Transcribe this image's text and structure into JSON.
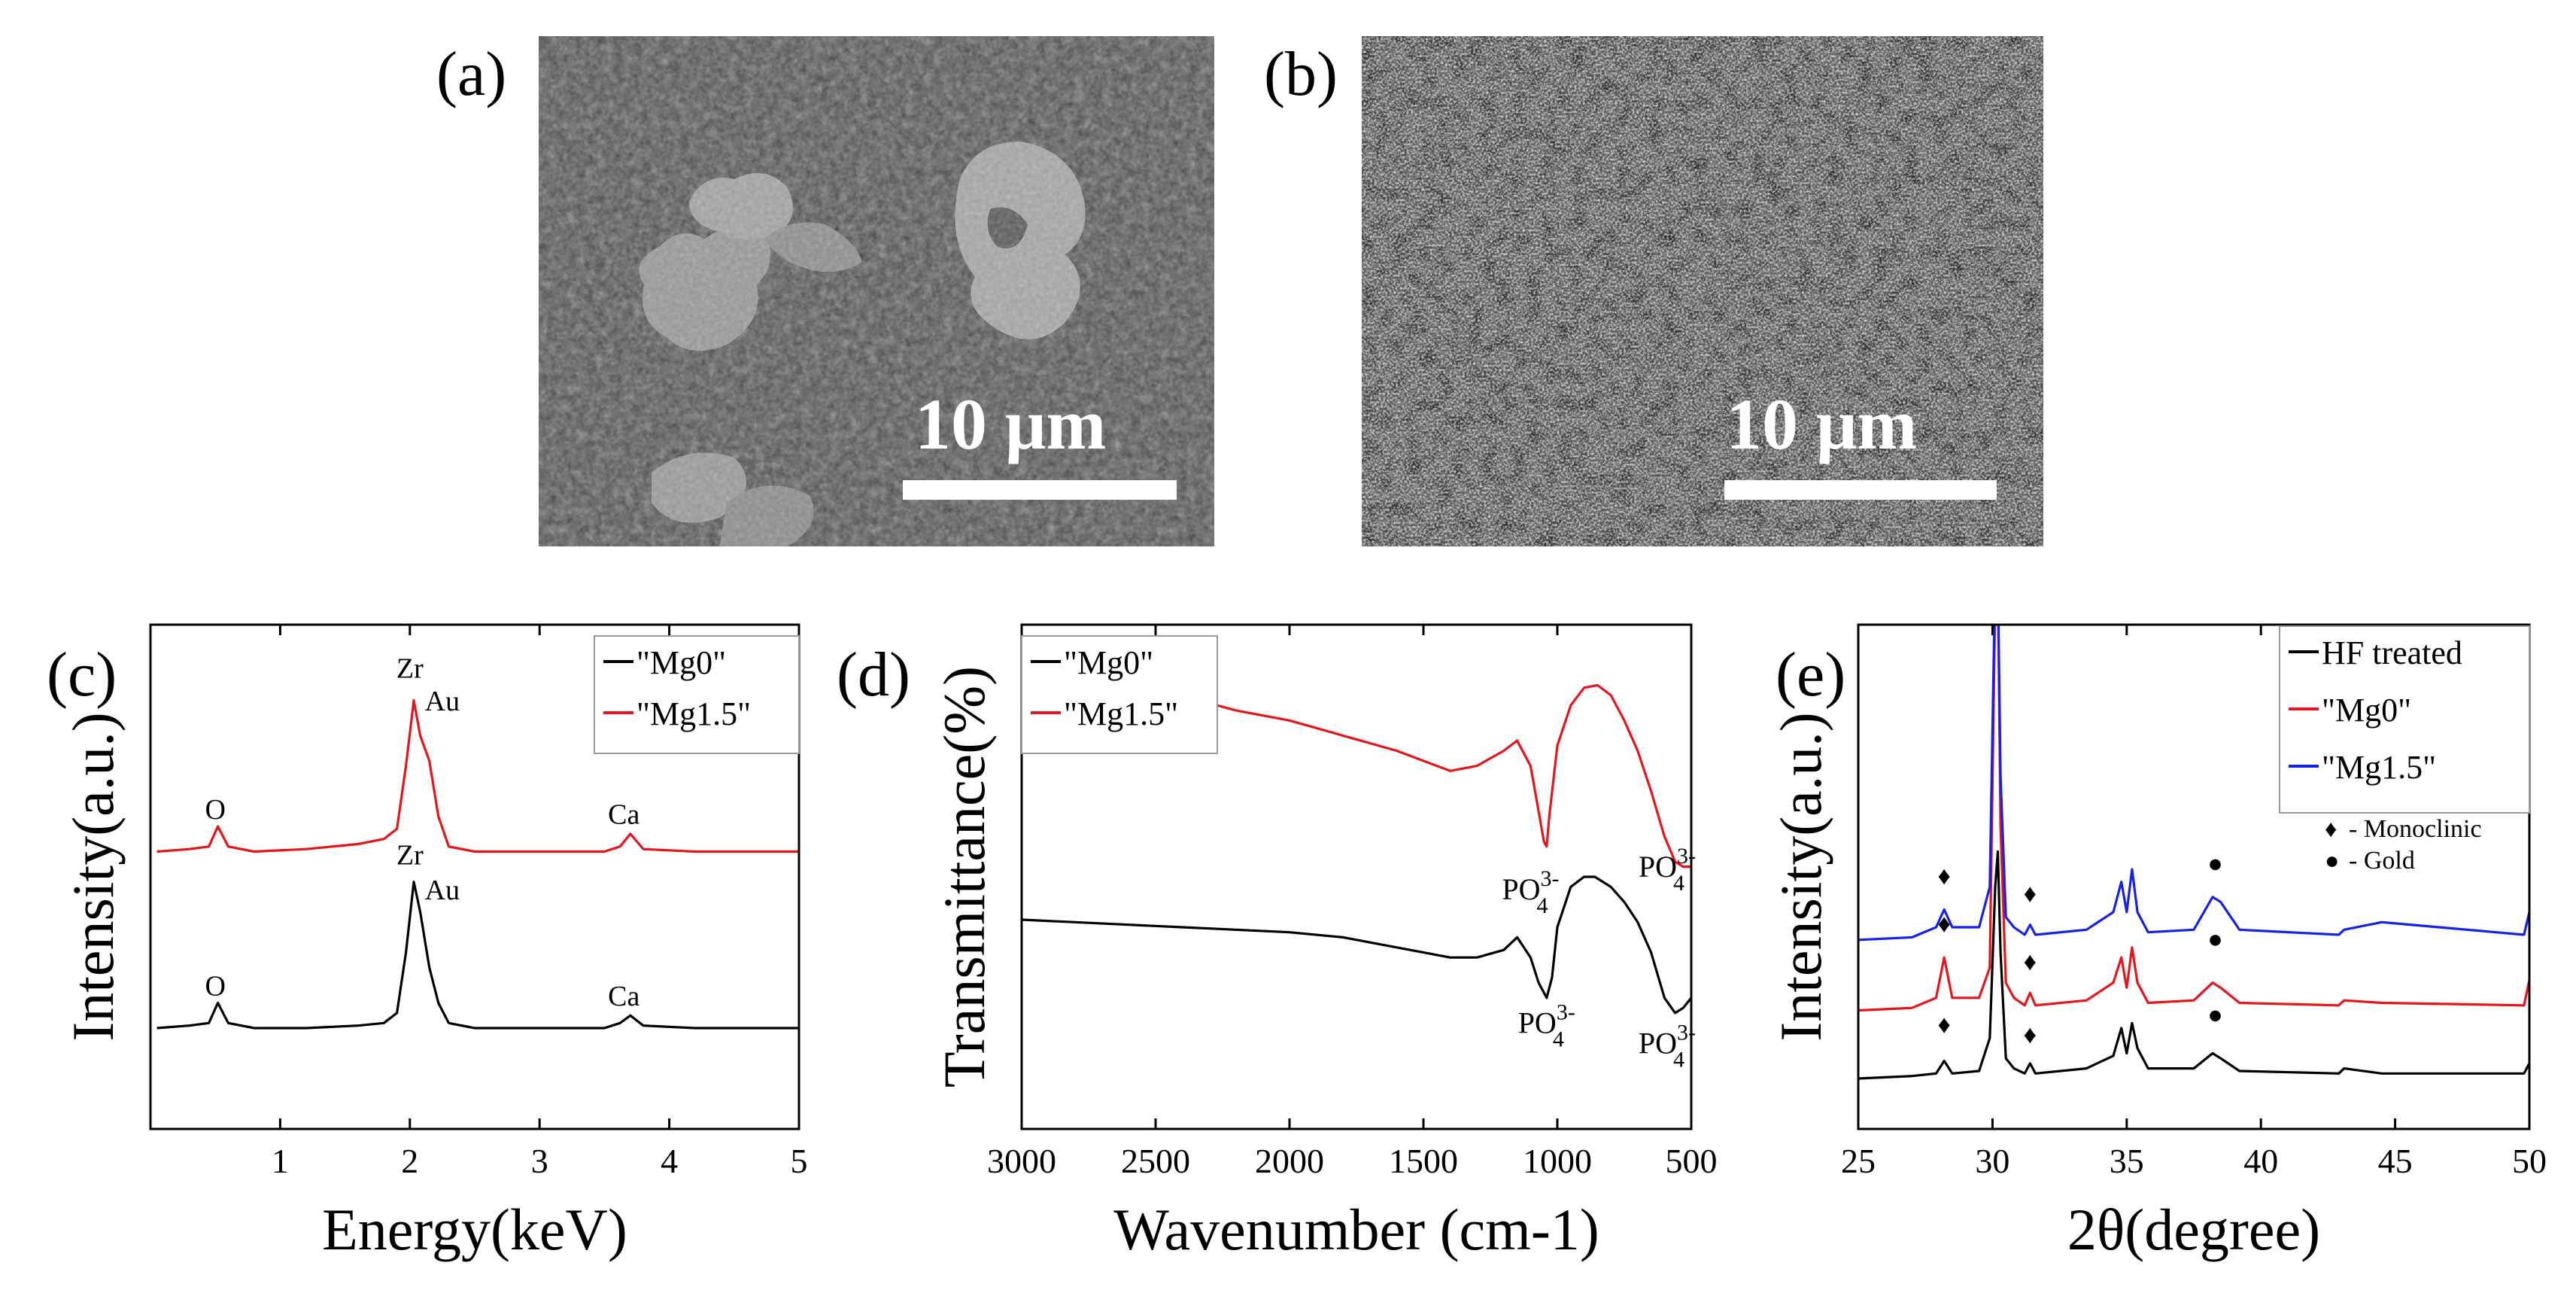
{
  "panels": {
    "a": {
      "label": "(a)",
      "scale_text": "10 μm"
    },
    "b": {
      "label": "(b)",
      "scale_text": "10 μm"
    }
  },
  "chart_data": [
    {
      "id": "c",
      "type": "line",
      "panel_label": "(c)",
      "xlabel": "Energy(keV)",
      "ylabel": "Intensity(a.u.)",
      "xlim": [
        0,
        5
      ],
      "ylim": [
        0,
        10
      ],
      "xticks": [
        1,
        2,
        3,
        4,
        5
      ],
      "yticks_shown": false,
      "legend_position": "top-right",
      "series": [
        {
          "name": "\"Mg0\"",
          "color": "#000000",
          "x": [
            0.05,
            0.3,
            0.45,
            0.52,
            0.6,
            0.8,
            1.2,
            1.6,
            1.8,
            1.9,
            1.97,
            2.03,
            2.08,
            2.15,
            2.22,
            2.3,
            2.5,
            3.0,
            3.5,
            3.62,
            3.7,
            3.8,
            4.2,
            5.0
          ],
          "y": [
            2.0,
            2.05,
            2.1,
            2.5,
            2.1,
            2.0,
            2.0,
            2.05,
            2.1,
            2.3,
            3.5,
            4.9,
            4.3,
            3.2,
            2.5,
            2.1,
            2.0,
            2.0,
            2.0,
            2.1,
            2.25,
            2.05,
            2.0,
            2.0
          ]
        },
        {
          "name": "\"Mg1.5\"",
          "color": "#e8141c",
          "x": [
            0.05,
            0.3,
            0.45,
            0.52,
            0.6,
            0.8,
            1.2,
            1.6,
            1.8,
            1.9,
            1.97,
            2.03,
            2.08,
            2.15,
            2.22,
            2.3,
            2.5,
            3.0,
            3.5,
            3.62,
            3.7,
            3.8,
            4.2,
            5.0
          ],
          "y": [
            5.5,
            5.55,
            5.6,
            6.0,
            5.6,
            5.5,
            5.55,
            5.65,
            5.75,
            5.95,
            7.2,
            8.5,
            7.8,
            7.3,
            6.2,
            5.6,
            5.5,
            5.5,
            5.5,
            5.6,
            5.85,
            5.55,
            5.5,
            5.5
          ]
        }
      ],
      "annotations": [
        {
          "text": "O",
          "x": 0.5,
          "y": 6.15
        },
        {
          "text": "Zr",
          "x": 2.0,
          "y": 8.95
        },
        {
          "text": "Au",
          "x": 2.25,
          "y": 8.3
        },
        {
          "text": "Ca",
          "x": 3.65,
          "y": 6.05
        },
        {
          "text": "O",
          "x": 0.5,
          "y": 2.65
        },
        {
          "text": "Zr",
          "x": 2.0,
          "y": 5.25
        },
        {
          "text": "Au",
          "x": 2.25,
          "y": 4.55
        },
        {
          "text": "Ca",
          "x": 3.65,
          "y": 2.45
        }
      ]
    },
    {
      "id": "d",
      "type": "line",
      "panel_label": "(d)",
      "xlabel": "Wavenumber (cm-1)",
      "ylabel": "Transmittance(%)",
      "xlim": [
        3000,
        500
      ],
      "ylim": [
        0,
        10
      ],
      "xticks": [
        3000,
        2500,
        2000,
        1500,
        1000,
        500
      ],
      "yticks_shown": false,
      "legend_position": "top-left",
      "series": [
        {
          "name": "\"Mg0\"",
          "color": "#000000",
          "x": [
            3000,
            2800,
            2600,
            2400,
            2200,
            2000,
            1800,
            1600,
            1400,
            1300,
            1200,
            1150,
            1100,
            1070,
            1040,
            1020,
            1000,
            950,
            900,
            860,
            800,
            750,
            700,
            650,
            600,
            560,
            530,
            500
          ],
          "y": [
            4.15,
            4.1,
            4.05,
            4.0,
            3.95,
            3.9,
            3.8,
            3.6,
            3.4,
            3.4,
            3.55,
            3.8,
            3.4,
            2.9,
            2.6,
            3.0,
            4.0,
            4.8,
            5.0,
            5.0,
            4.8,
            4.5,
            4.1,
            3.5,
            2.6,
            2.3,
            2.4,
            2.6
          ]
        },
        {
          "name": "\"Mg1.5\"",
          "color": "#e8141c",
          "x": [
            3000,
            2800,
            2600,
            2400,
            2360,
            2340,
            2200,
            2000,
            1800,
            1600,
            1400,
            1300,
            1200,
            1150,
            1100,
            1070,
            1050,
            1040,
            1030,
            1000,
            950,
            900,
            850,
            800,
            750,
            700,
            650,
            600,
            560,
            530,
            500
          ],
          "y": [
            8.7,
            8.65,
            8.6,
            8.5,
            8.3,
            8.5,
            8.3,
            8.1,
            7.8,
            7.5,
            7.1,
            7.2,
            7.5,
            7.7,
            7.2,
            6.3,
            5.7,
            5.6,
            6.2,
            7.6,
            8.4,
            8.75,
            8.8,
            8.6,
            8.1,
            7.5,
            6.7,
            5.8,
            5.3,
            5.2,
            5.2
          ]
        }
      ],
      "annotations": [
        {
          "text": "PO",
          "sub": "4",
          "sup": "3-",
          "x": 1100,
          "y": 4.55
        },
        {
          "text": "PO",
          "sub": "4",
          "sup": "3-",
          "x": 590,
          "y": 5.0
        },
        {
          "text": "PO",
          "sub": "4",
          "sup": "3-",
          "x": 1040,
          "y": 1.9
        },
        {
          "text": "PO",
          "sub": "4",
          "sup": "3-",
          "x": 590,
          "y": 1.5
        }
      ]
    },
    {
      "id": "e",
      "type": "line",
      "panel_label": "(e)",
      "xlabel": "2θ(degree)",
      "ylabel": "Intensity(a.u.)",
      "xlim": [
        25,
        50
      ],
      "ylim": [
        0,
        10
      ],
      "xticks": [
        25,
        30,
        35,
        40,
        45,
        50
      ],
      "yticks_shown": false,
      "legend_position": "top-right",
      "series": [
        {
          "name": "HF treated",
          "color": "#000000",
          "x": [
            25,
            27,
            27.9,
            28.2,
            28.5,
            29.5,
            29.9,
            30.1,
            30.2,
            30.3,
            30.5,
            30.8,
            31.2,
            31.4,
            31.6,
            33.5,
            34.5,
            34.8,
            35.0,
            35.2,
            35.4,
            35.8,
            37.5,
            38.2,
            38.5,
            39.2,
            42.9,
            43.1,
            44.5,
            49.8,
            50
          ],
          "y": [
            1.0,
            1.05,
            1.1,
            1.35,
            1.1,
            1.15,
            1.8,
            4.8,
            5.5,
            3.5,
            1.4,
            1.2,
            1.1,
            1.3,
            1.1,
            1.2,
            1.45,
            2.0,
            1.5,
            2.1,
            1.6,
            1.2,
            1.2,
            1.5,
            1.4,
            1.15,
            1.1,
            1.2,
            1.1,
            1.1,
            1.3
          ]
        },
        {
          "name": "\"Mg0\"",
          "color": "#e8141c",
          "x": [
            25,
            27,
            27.9,
            28.2,
            28.5,
            29.5,
            29.9,
            30.1,
            30.2,
            30.3,
            30.5,
            30.8,
            31.2,
            31.4,
            31.6,
            33.5,
            34.5,
            34.8,
            35.0,
            35.2,
            35.4,
            35.8,
            37.5,
            38.2,
            38.5,
            39.2,
            42.9,
            43.1,
            44.5,
            49.8,
            50
          ],
          "y": [
            2.35,
            2.4,
            2.6,
            3.4,
            2.6,
            2.6,
            3.2,
            10.5,
            11.0,
            6.0,
            2.9,
            2.6,
            2.45,
            2.7,
            2.45,
            2.55,
            2.9,
            3.4,
            2.8,
            3.6,
            2.9,
            2.5,
            2.55,
            2.9,
            2.8,
            2.5,
            2.45,
            2.55,
            2.5,
            2.45,
            2.95
          ]
        },
        {
          "name": "\"Mg1.5\"",
          "color": "#1421e8",
          "x": [
            25,
            27,
            27.9,
            28.2,
            28.5,
            29.5,
            29.9,
            30.1,
            30.2,
            30.3,
            30.5,
            30.8,
            31.2,
            31.4,
            31.6,
            33.5,
            34.5,
            34.8,
            35.0,
            35.2,
            35.4,
            35.8,
            37.5,
            38.2,
            38.5,
            39.2,
            42.9,
            43.1,
            44.5,
            49.8,
            50
          ],
          "y": [
            3.75,
            3.8,
            4.0,
            4.35,
            4.0,
            4.0,
            4.8,
            11.0,
            11.0,
            7.0,
            4.2,
            4.0,
            3.85,
            4.05,
            3.85,
            3.95,
            4.3,
            4.9,
            4.3,
            5.15,
            4.3,
            3.9,
            3.95,
            4.6,
            4.5,
            3.95,
            3.85,
            3.95,
            4.1,
            3.85,
            4.3
          ]
        }
      ],
      "markers": [
        {
          "symbol": "♦",
          "x": 28.2,
          "y": 4.85
        },
        {
          "symbol": "♦",
          "x": 31.4,
          "y": 4.5
        },
        {
          "symbol": "●",
          "x": 38.3,
          "y": 5.1
        },
        {
          "symbol": "♦",
          "x": 28.2,
          "y": 3.9
        },
        {
          "symbol": "♦",
          "x": 31.4,
          "y": 3.15
        },
        {
          "symbol": "●",
          "x": 38.3,
          "y": 3.6
        },
        {
          "symbol": "♦",
          "x": 28.2,
          "y": 1.9
        },
        {
          "symbol": "♦",
          "x": 31.4,
          "y": 1.7
        },
        {
          "symbol": "●",
          "x": 38.3,
          "y": 2.1
        }
      ],
      "legend_extra": [
        {
          "symbol": "♦",
          "text": "- Monoclinic"
        },
        {
          "symbol": "●",
          "text": "- Gold"
        }
      ]
    }
  ]
}
